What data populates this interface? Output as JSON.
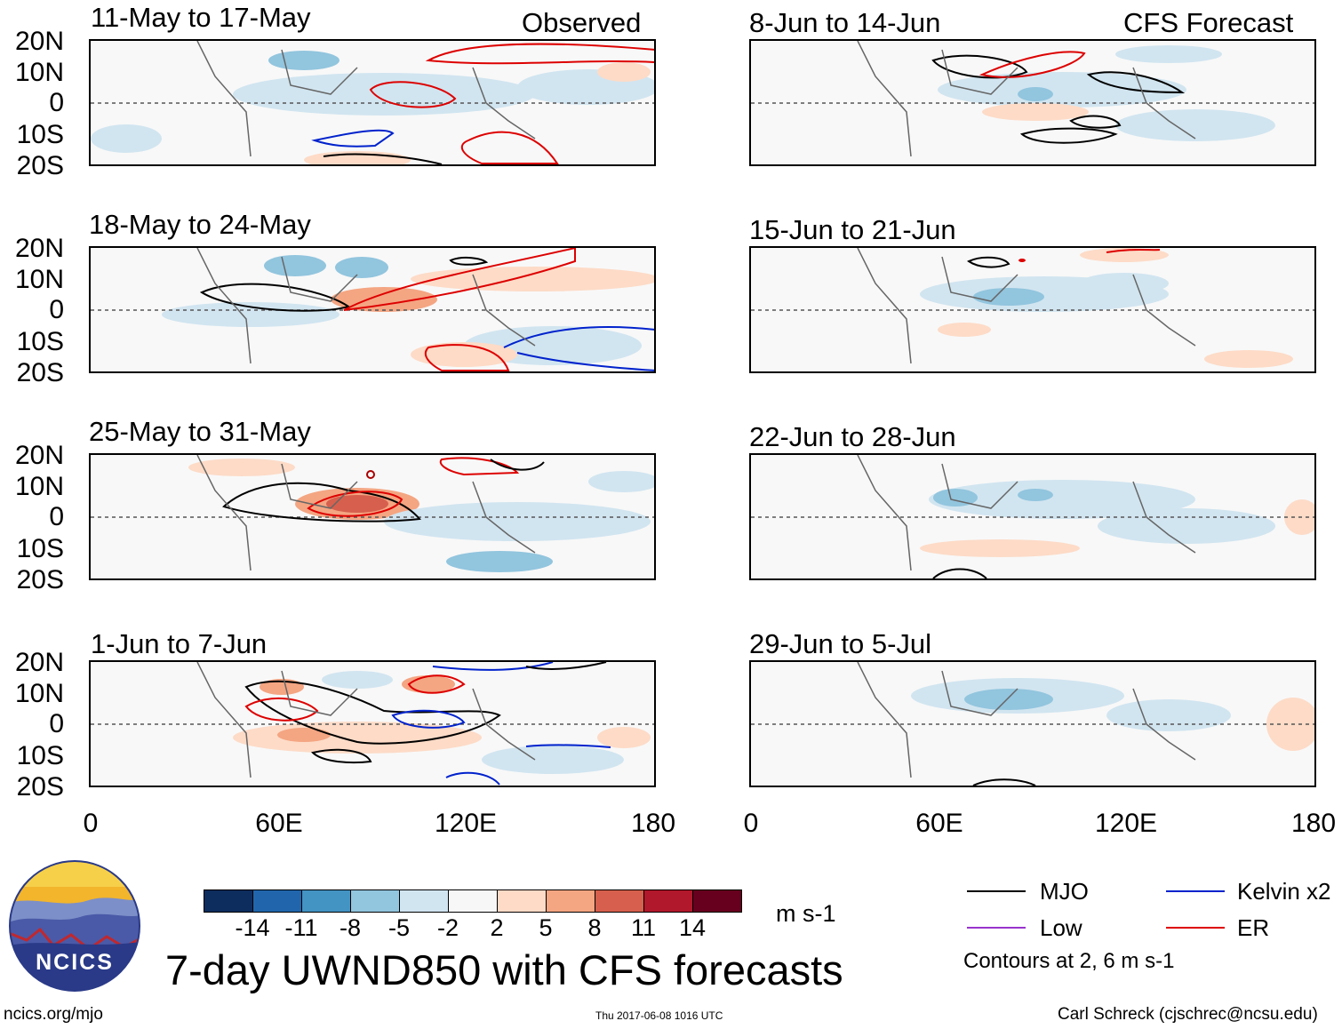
{
  "columns": [
    {
      "label": "Observed",
      "panels": [
        "11-May to 17-May",
        "18-May to 24-May",
        "25-May to 31-May",
        "1-Jun to 7-Jun"
      ]
    },
    {
      "label": "CFS Forecast",
      "panels": [
        "8-Jun to 14-Jun",
        "15-Jun to 21-Jun",
        "22-Jun to 28-Jun",
        "29-Jun to 5-Jul"
      ]
    }
  ],
  "lat_labels": [
    "20N",
    "10N",
    "0",
    "10S",
    "20S"
  ],
  "lon_labels": [
    "0",
    "60E",
    "120E",
    "180"
  ],
  "colorbar": {
    "ticks": [
      "-14",
      "-11",
      "-8",
      "-5",
      "-2",
      "2",
      "5",
      "8",
      "11",
      "14"
    ],
    "colors": [
      "#0d2d5e",
      "#2166ac",
      "#4393c3",
      "#92c5de",
      "#d1e5f0",
      "#f7f7f7",
      "#fddbc7",
      "#f4a582",
      "#d6604d",
      "#b2182b",
      "#67001f"
    ],
    "unit": "m s-1"
  },
  "title": "7-day UWND850 with CFS forecasts",
  "legend": {
    "items": [
      {
        "label": "MJO",
        "color": "#000000"
      },
      {
        "label": "Kelvin x2",
        "color": "#0022cc"
      },
      {
        "label": "Low",
        "color": "#9933cc"
      },
      {
        "label": "ER",
        "color": "#dd0000"
      }
    ],
    "note": "Contours at 2, 6 m s-1"
  },
  "logo_text": "NCICS",
  "footer": {
    "url": "ncics.org/mjo",
    "timestamp": "Thu 2017-06-08 1016 UTC",
    "credit": "Carl Schreck (cjschrec@ncsu.edu)"
  }
}
